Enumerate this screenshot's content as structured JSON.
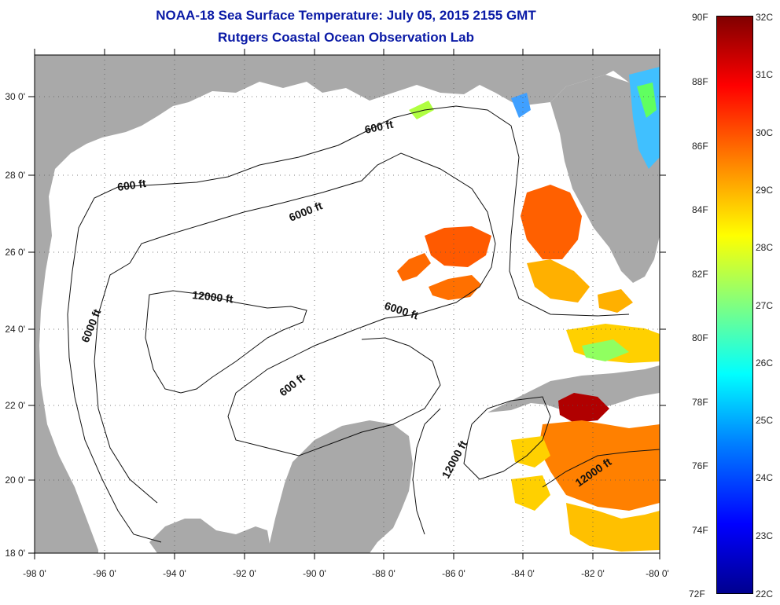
{
  "title_line1": "NOAA-18 Sea Surface Temperature:  July 05, 2015 2155 GMT",
  "title_line2": "Rutgers Coastal Ocean Observation Lab",
  "lon_ticks": [
    "-98 0'",
    "-96 0'",
    "-94 0'",
    "-92 0'",
    "-90 0'",
    "-88 0'",
    "-86 0'",
    "-84 0'",
    "-82 0'",
    "-80 0'"
  ],
  "lat_ticks": [
    "30 0'",
    "28 0'",
    "26 0'",
    "24 0'",
    "22 0'",
    "20 0'",
    "18 0'"
  ],
  "contours": {
    "c600_a": "600 ft",
    "c600_b": "600 ft",
    "c600_c": "600 ft",
    "c6000_a": "6000 ft",
    "c6000_b": "6000 ft",
    "c6000_c": "6000 ft",
    "c12000_a": "12000 ft",
    "c12000_b": "12000 ft",
    "c12000_c": "12000 ft"
  },
  "colorbar": {
    "f_labels": [
      "90F",
      "88F",
      "86F",
      "84F",
      "82F",
      "80F",
      "78F",
      "76F",
      "74F",
      "72F"
    ],
    "c_labels": [
      "32C",
      "31C",
      "30C",
      "29C",
      "28C",
      "27C",
      "26C",
      "25C",
      "24C",
      "23C",
      "22C"
    ]
  },
  "colors": {
    "land": "#a9a9a9",
    "water": "#ffffff",
    "title": "#0a1aa6"
  }
}
